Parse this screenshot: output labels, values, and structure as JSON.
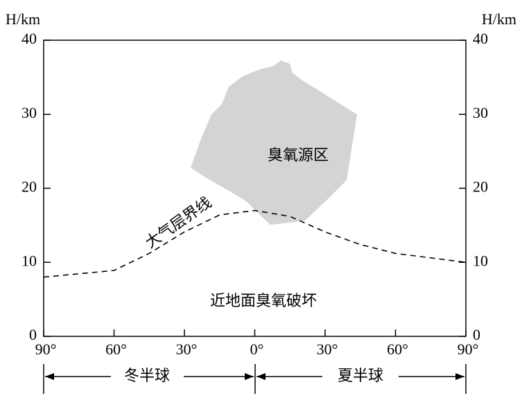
{
  "chart_data": {
    "type": "line",
    "y_label": "H/km",
    "y2_label": "H/km",
    "x": [
      -90,
      -60,
      -45,
      -30,
      -15,
      0,
      15,
      30,
      45,
      60,
      90
    ],
    "series": [
      {
        "name": "大气层界线",
        "color": "#000000",
        "values": [
          8.0,
          8.9,
          11.2,
          14.1,
          16.4,
          17.0,
          16.2,
          14.1,
          12.4,
          11.2,
          10.0
        ]
      }
    ],
    "xlim": [
      -90,
      90
    ],
    "xticks": [
      {
        "value": -90,
        "label": "90°"
      },
      {
        "value": -60,
        "label": "60°"
      },
      {
        "value": -30,
        "label": "30°"
      },
      {
        "value": 0,
        "label": "0°"
      },
      {
        "value": 30,
        "label": "30°"
      },
      {
        "value": 60,
        "label": "60°"
      },
      {
        "value": 90,
        "label": "90°"
      }
    ],
    "ylim": [
      0,
      40
    ],
    "yticks": [
      0,
      10,
      20,
      30,
      40
    ],
    "y2lim": [
      0,
      40
    ],
    "y2ticks": [
      0,
      10,
      20,
      30,
      40
    ],
    "region_label": "臭氧源区",
    "surface_label": "近地面臭氧破坏",
    "hemispheres": [
      "冬半球",
      "夏半球"
    ]
  }
}
